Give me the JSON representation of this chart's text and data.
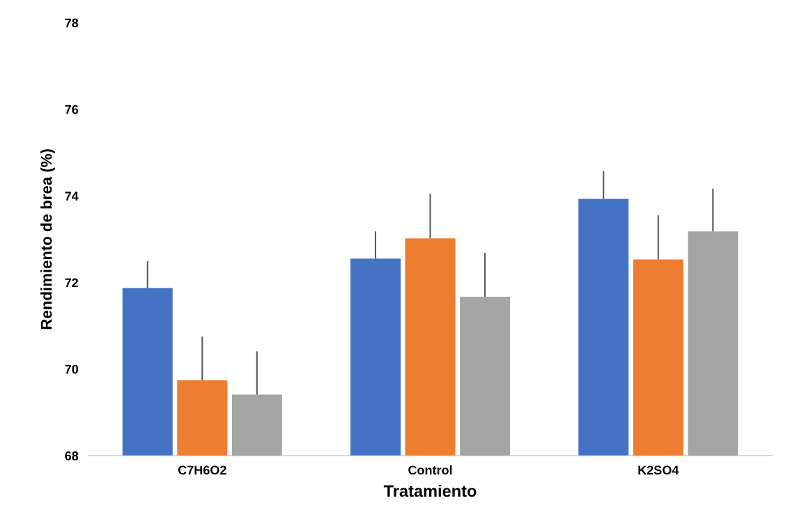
{
  "chart_data": {
    "type": "bar",
    "xlabel": "Tratamiento",
    "ylabel": "Rendimiento de brea (%)",
    "categories": [
      "C7H6O2",
      "Control",
      "K2SO4"
    ],
    "series": [
      {
        "color": "#4472c4",
        "values": [
          71.87,
          72.55,
          73.93
        ],
        "errors": [
          [
            71.87,
            72.49
          ],
          [
            72.55,
            73.18
          ],
          [
            73.93,
            74.58
          ]
        ]
      },
      {
        "color": "#ed7d31",
        "values": [
          69.74,
          73.02,
          72.53
        ],
        "errors": [
          [
            69.74,
            70.75
          ],
          [
            73.02,
            74.05
          ],
          [
            72.53,
            73.55
          ]
        ]
      },
      {
        "color": "#a5a5a5",
        "values": [
          69.41,
          71.67,
          73.18
        ],
        "errors": [
          [
            69.41,
            70.41
          ],
          [
            71.67,
            72.68
          ],
          [
            73.18,
            74.17
          ]
        ]
      }
    ],
    "ylim": [
      68,
      78
    ],
    "yticks": [
      68,
      70,
      72,
      74,
      76,
      78
    ],
    "grid": false,
    "legend": false
  }
}
